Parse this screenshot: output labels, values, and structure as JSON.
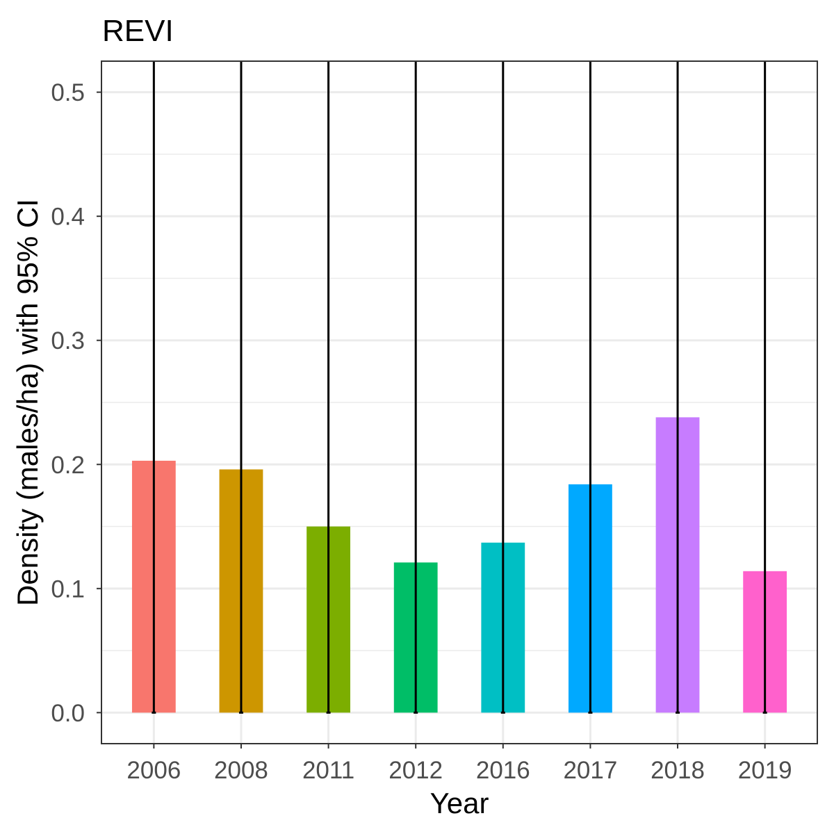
{
  "chart_data": {
    "type": "bar",
    "title": "REVI",
    "xlabel": "Year",
    "ylabel": "Density (males/ha) with 95% CI",
    "categories": [
      "2006",
      "2008",
      "2011",
      "2012",
      "2016",
      "2017",
      "2018",
      "2019"
    ],
    "values": [
      0.203,
      0.196,
      0.15,
      0.121,
      0.137,
      0.184,
      0.238,
      0.114
    ],
    "ci_lower": [
      0,
      0,
      0,
      0,
      0,
      0,
      0,
      0
    ],
    "ci_upper": [
      null,
      null,
      null,
      null,
      null,
      null,
      null,
      null
    ],
    "colors": [
      "#F8766D",
      "#CD9600",
      "#7CAE00",
      "#00BE67",
      "#00BFC4",
      "#00A9FF",
      "#C77CFF",
      "#FF61CC"
    ],
    "errorbar_color": "#000000",
    "grid_color": "#EBEBEB",
    "ylim": [
      -0.025,
      0.525
    ],
    "yticks": [
      0,
      0.1,
      0.2,
      0.3,
      0.4,
      0.5
    ],
    "ytick_labels": [
      "0.0",
      "0.1",
      "0.2",
      "0.3",
      "0.4",
      "0.5"
    ],
    "grid": true,
    "legend": "none"
  }
}
